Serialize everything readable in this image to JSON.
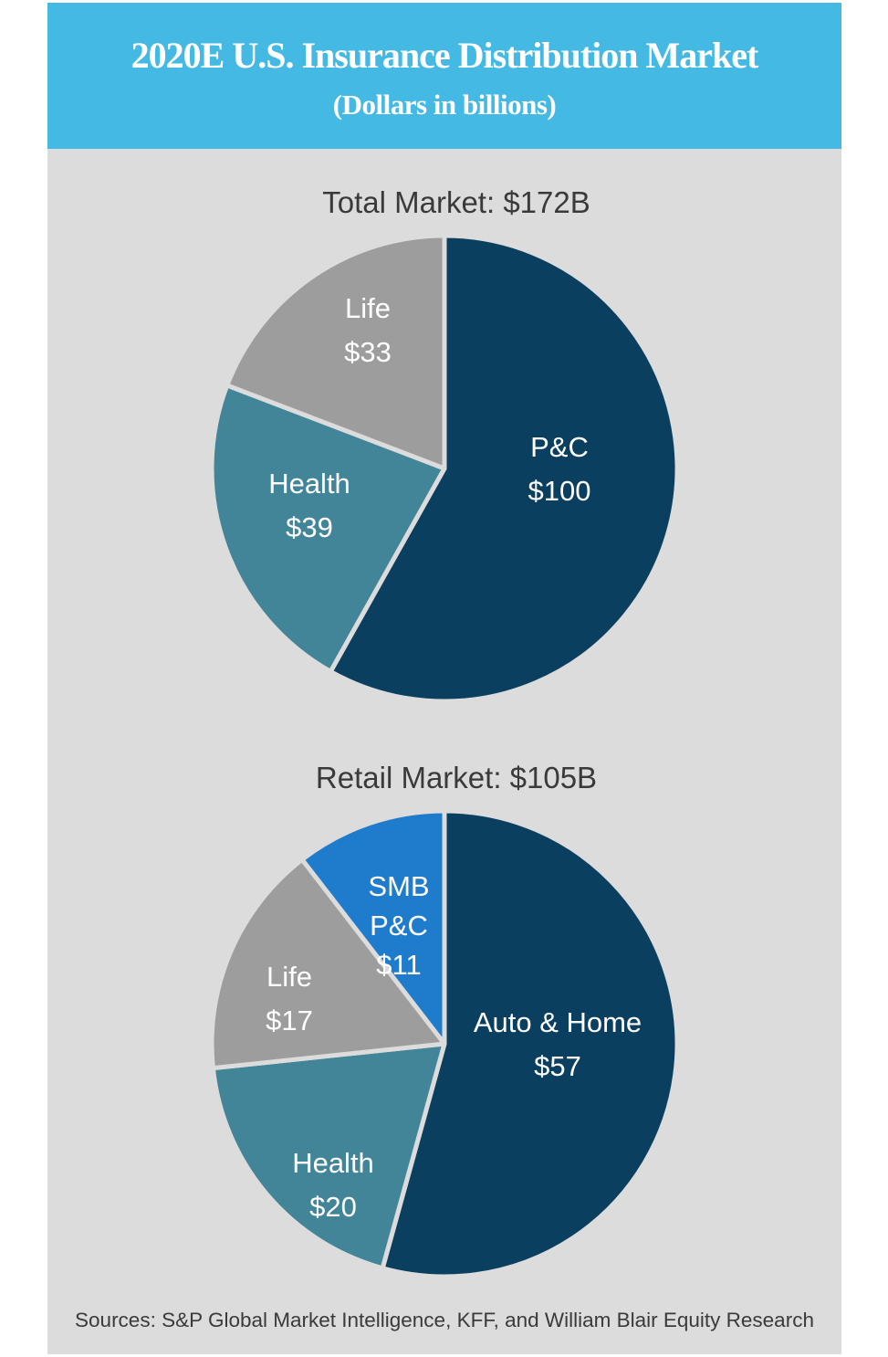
{
  "header": {
    "title": "2020E U.S. Insurance Distribution Market",
    "subtitle": "(Dollars in billions)"
  },
  "colors": {
    "header_bg": "#43b9e4",
    "panel_bg": "#dcdcdc",
    "dark_navy": "#0b3f60",
    "teal": "#428599",
    "gray": "#9d9d9d",
    "bright_blue": "#1f7ccc",
    "divider": "#dcdcdc"
  },
  "chart_data": [
    {
      "type": "pie",
      "title": "Total Market: $172B",
      "slices": [
        {
          "name": "P&C",
          "value_label": "$100",
          "value": 100,
          "color": "#0b3f60"
        },
        {
          "name": "Health",
          "value_label": "$39",
          "value": 39,
          "color": "#428599"
        },
        {
          "name": "Life",
          "value_label": "$33",
          "value": 33,
          "color": "#9d9d9d"
        }
      ]
    },
    {
      "type": "pie",
      "title": "Retail Market: $105B",
      "slices": [
        {
          "name": "Auto & Home",
          "value_label": "$57",
          "value": 57,
          "color": "#0b3f60"
        },
        {
          "name": "Health",
          "value_label": "$20",
          "value": 20,
          "color": "#428599"
        },
        {
          "name": "Life",
          "value_label": "$17",
          "value": 17,
          "color": "#9d9d9d"
        },
        {
          "name": "SMB\nP&C",
          "value_label": "$11",
          "value": 11,
          "color": "#1f7ccc"
        }
      ]
    }
  ],
  "source": "Sources: S&P Global Market Intelligence, KFF, and William Blair Equity Research"
}
